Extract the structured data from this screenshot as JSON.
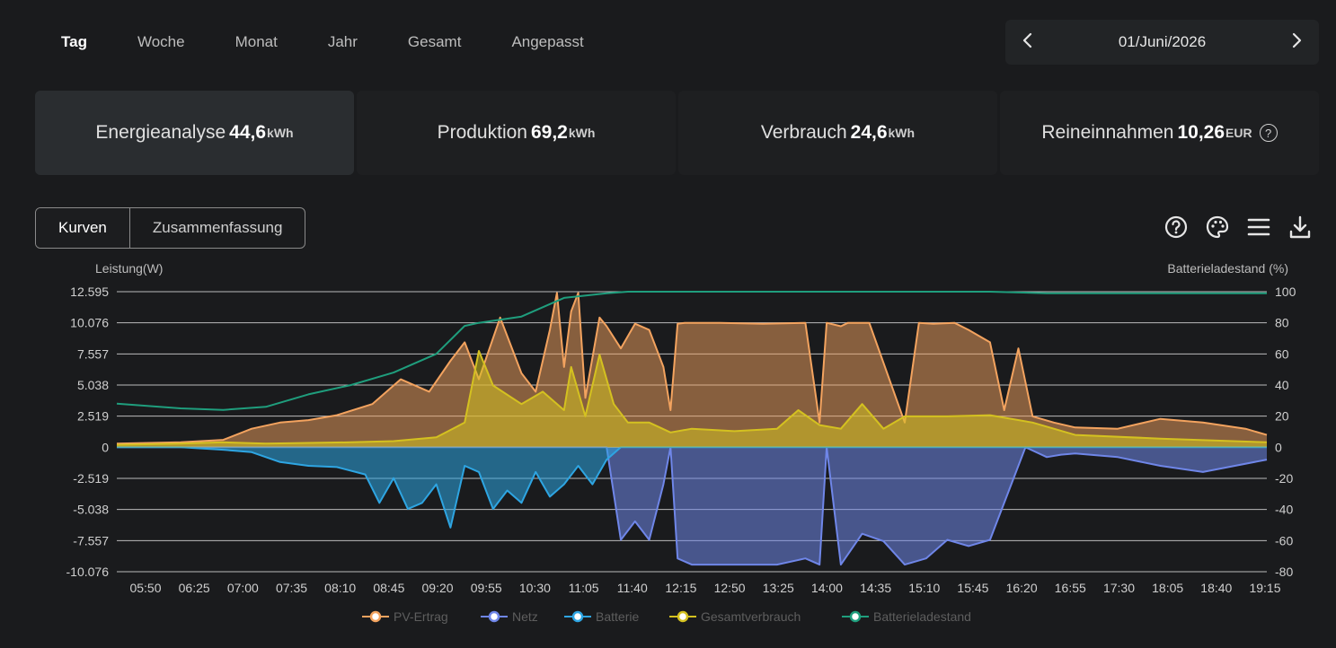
{
  "tabs": [
    "Tag",
    "Woche",
    "Monat",
    "Jahr",
    "Gesamt",
    "Angepasst"
  ],
  "date": {
    "label": "01/Juni/2026",
    "prev_icon": "chevron-left-icon",
    "next_icon": "chevron-right-icon"
  },
  "cards": [
    {
      "label": "Energieanalyse",
      "value": "44,6",
      "unit": "kWh"
    },
    {
      "label": "Produktion",
      "value": "69,2",
      "unit": "kWh"
    },
    {
      "label": "Verbrauch",
      "value": "24,6",
      "unit": "kWh"
    },
    {
      "label": "Reineinnahmen",
      "value": "10,26",
      "unit": "EUR",
      "help": "?"
    }
  ],
  "view_switch": [
    "Kurven",
    "Zusammenfassung"
  ],
  "toolbar_icons": [
    "help-icon",
    "palette-icon",
    "menu-icon",
    "download-icon"
  ],
  "colors": {
    "pv": "#f3a35f",
    "grid": "#6f86e8",
    "battery": "#2ea5e2",
    "consumption": "#d4c120",
    "soc": "#1f9e7d"
  },
  "chart_data": {
    "type": "area",
    "ylabel": "Leistung(W)",
    "y2label": "Batterieladestand (%)",
    "y_ticks": [
      "12.595",
      "10.076",
      "7.557",
      "5.038",
      "2.519",
      "0",
      "-2.519",
      "-5.038",
      "-7.557",
      "-10.076"
    ],
    "y2_ticks": [
      "100",
      "80",
      "60",
      "40",
      "20",
      "0",
      "-20",
      "-40",
      "-60",
      "-80"
    ],
    "ylim": [
      -10076,
      12595
    ],
    "y2lim": [
      -80,
      100
    ],
    "x_ticks": [
      "05:50",
      "06:25",
      "07:00",
      "07:35",
      "08:10",
      "08:45",
      "09:20",
      "09:55",
      "10:30",
      "11:05",
      "11:40",
      "12:15",
      "12:50",
      "13:25",
      "14:00",
      "14:35",
      "15:10",
      "15:45",
      "16:20",
      "16:55",
      "17:30",
      "18:05",
      "18:40",
      "19:15"
    ],
    "series": [
      {
        "name": "PV-Ertrag",
        "x": [
          "05:45",
          "06:30",
          "07:00",
          "07:20",
          "07:40",
          "08:00",
          "08:20",
          "08:45",
          "09:05",
          "09:25",
          "09:40",
          "09:50",
          "10:00",
          "10:15",
          "10:30",
          "10:40",
          "10:50",
          "10:55",
          "11:00",
          "11:05",
          "11:10",
          "11:15",
          "11:25",
          "11:30",
          "11:40",
          "11:50",
          "12:00",
          "12:05",
          "12:10",
          "12:15",
          "12:20",
          "12:25",
          "12:50",
          "13:20",
          "13:50",
          "14:00",
          "14:05",
          "14:15",
          "14:20",
          "14:35",
          "15:00",
          "15:10",
          "15:20",
          "15:35",
          "15:45",
          "16:00",
          "16:10",
          "16:20",
          "16:30",
          "16:45",
          "17:00",
          "17:30",
          "18:00",
          "18:30",
          "19:00",
          "19:15"
        ],
        "y": [
          300,
          400,
          600,
          1500,
          2000,
          2200,
          2600,
          3500,
          5500,
          4500,
          7000,
          8500,
          5500,
          10500,
          6000,
          4500,
          9500,
          12500,
          6500,
          11000,
          12500,
          4000,
          10500,
          9800,
          8000,
          10000,
          9500,
          8000,
          6500,
          3000,
          10000,
          10076,
          10076,
          10000,
          10076,
          2000,
          10076,
          9800,
          10076,
          10076,
          2000,
          10076,
          10000,
          10076,
          9500,
          8500,
          3000,
          8000,
          2500,
          2000,
          1600,
          1500,
          2300,
          2000,
          1500,
          1000
        ]
      },
      {
        "name": "Netz",
        "x": [
          "05:45",
          "09:55",
          "10:10",
          "11:30",
          "11:40",
          "11:50",
          "12:00",
          "12:10",
          "12:15",
          "12:20",
          "12:30",
          "13:00",
          "13:30",
          "13:50",
          "14:00",
          "14:05",
          "14:15",
          "14:30",
          "14:45",
          "15:00",
          "15:15",
          "15:30",
          "15:45",
          "16:00",
          "16:15",
          "16:25",
          "16:40",
          "16:50",
          "17:00",
          "17:30",
          "18:00",
          "18:30",
          "19:15"
        ],
        "y": [
          0,
          0,
          0,
          0,
          -7500,
          -6000,
          -7500,
          -3000,
          0,
          -9000,
          -9500,
          -9500,
          -9500,
          -9000,
          -9500,
          0,
          -9500,
          -7000,
          -7600,
          -9500,
          -9000,
          -7500,
          -8000,
          -7500,
          -3000,
          0,
          -800,
          -600,
          -500,
          -800,
          -1500,
          -2000,
          -1000
        ]
      },
      {
        "name": "Batterie",
        "x": [
          "05:45",
          "06:30",
          "07:00",
          "07:20",
          "07:40",
          "08:00",
          "08:20",
          "08:40",
          "08:50",
          "09:00",
          "09:10",
          "09:20",
          "09:30",
          "09:40",
          "09:50",
          "10:00",
          "10:10",
          "10:20",
          "10:30",
          "10:40",
          "10:50",
          "11:00",
          "11:10",
          "11:20",
          "11:30",
          "11:40",
          "19:15"
        ],
        "y": [
          0,
          0,
          -200,
          -400,
          -1200,
          -1500,
          -1600,
          -2200,
          -4500,
          -2500,
          -5000,
          -4500,
          -3000,
          -6500,
          -1500,
          -2000,
          -5000,
          -3500,
          -4500,
          -2000,
          -4000,
          -3000,
          -1500,
          -3000,
          -1000,
          0,
          0
        ]
      },
      {
        "name": "Gesamtverbrauch",
        "x": [
          "05:45",
          "06:30",
          "07:00",
          "07:30",
          "08:00",
          "08:30",
          "09:00",
          "09:30",
          "09:50",
          "10:00",
          "10:10",
          "10:30",
          "10:45",
          "11:00",
          "11:05",
          "11:15",
          "11:25",
          "11:35",
          "11:45",
          "12:00",
          "12:15",
          "12:30",
          "13:00",
          "13:30",
          "13:45",
          "14:00",
          "14:15",
          "14:30",
          "14:45",
          "15:00",
          "15:30",
          "16:00",
          "16:30",
          "17:00",
          "18:00",
          "19:15"
        ],
        "y": [
          200,
          300,
          400,
          300,
          350,
          400,
          500,
          800,
          2000,
          7800,
          5000,
          3500,
          4500,
          3000,
          6500,
          2500,
          7500,
          3500,
          2000,
          2000,
          1200,
          1500,
          1300,
          1500,
          3000,
          1800,
          1500,
          3500,
          1500,
          2500,
          2500,
          2600,
          2000,
          1000,
          700,
          400
        ]
      },
      {
        "name": "Batterieladestand",
        "x": [
          "05:45",
          "06:30",
          "07:00",
          "07:30",
          "08:00",
          "08:30",
          "09:00",
          "09:30",
          "09:50",
          "10:00",
          "10:30",
          "11:00",
          "11:30",
          "11:45",
          "12:00",
          "13:00",
          "14:00",
          "15:00",
          "16:00",
          "16:40",
          "17:00",
          "19:15"
        ],
        "y": [
          28,
          25,
          24,
          26,
          34,
          40,
          48,
          60,
          78,
          80,
          84,
          96,
          99,
          100,
          100,
          100,
          100,
          100,
          100,
          99,
          99,
          99
        ]
      }
    ],
    "legend_position": "bottom"
  }
}
